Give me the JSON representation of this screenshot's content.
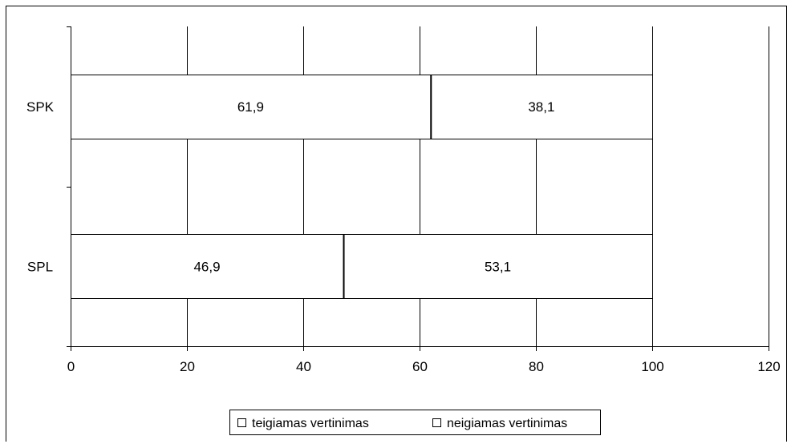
{
  "chart_data": {
    "type": "bar",
    "orientation": "horizontal",
    "stacked": true,
    "categories": [
      "SPK",
      "SPL"
    ],
    "series": [
      {
        "name": "teigiamas vertinimas",
        "values": [
          61.9,
          46.9
        ],
        "labels": [
          "61,9",
          "46,9"
        ]
      },
      {
        "name": "neigiamas vertinimas",
        "values": [
          38.1,
          53.1
        ],
        "labels": [
          "38,1",
          "53,1"
        ]
      }
    ],
    "xlim": [
      0,
      120
    ],
    "xticks": [
      0,
      20,
      40,
      60,
      80,
      100,
      120
    ],
    "xtick_labels": [
      "0",
      "20",
      "40",
      "60",
      "80",
      "100",
      "120"
    ],
    "grid": "vertical",
    "legend_position": "bottom",
    "bar_fill": "#ffffff",
    "line_color": "#000000"
  }
}
